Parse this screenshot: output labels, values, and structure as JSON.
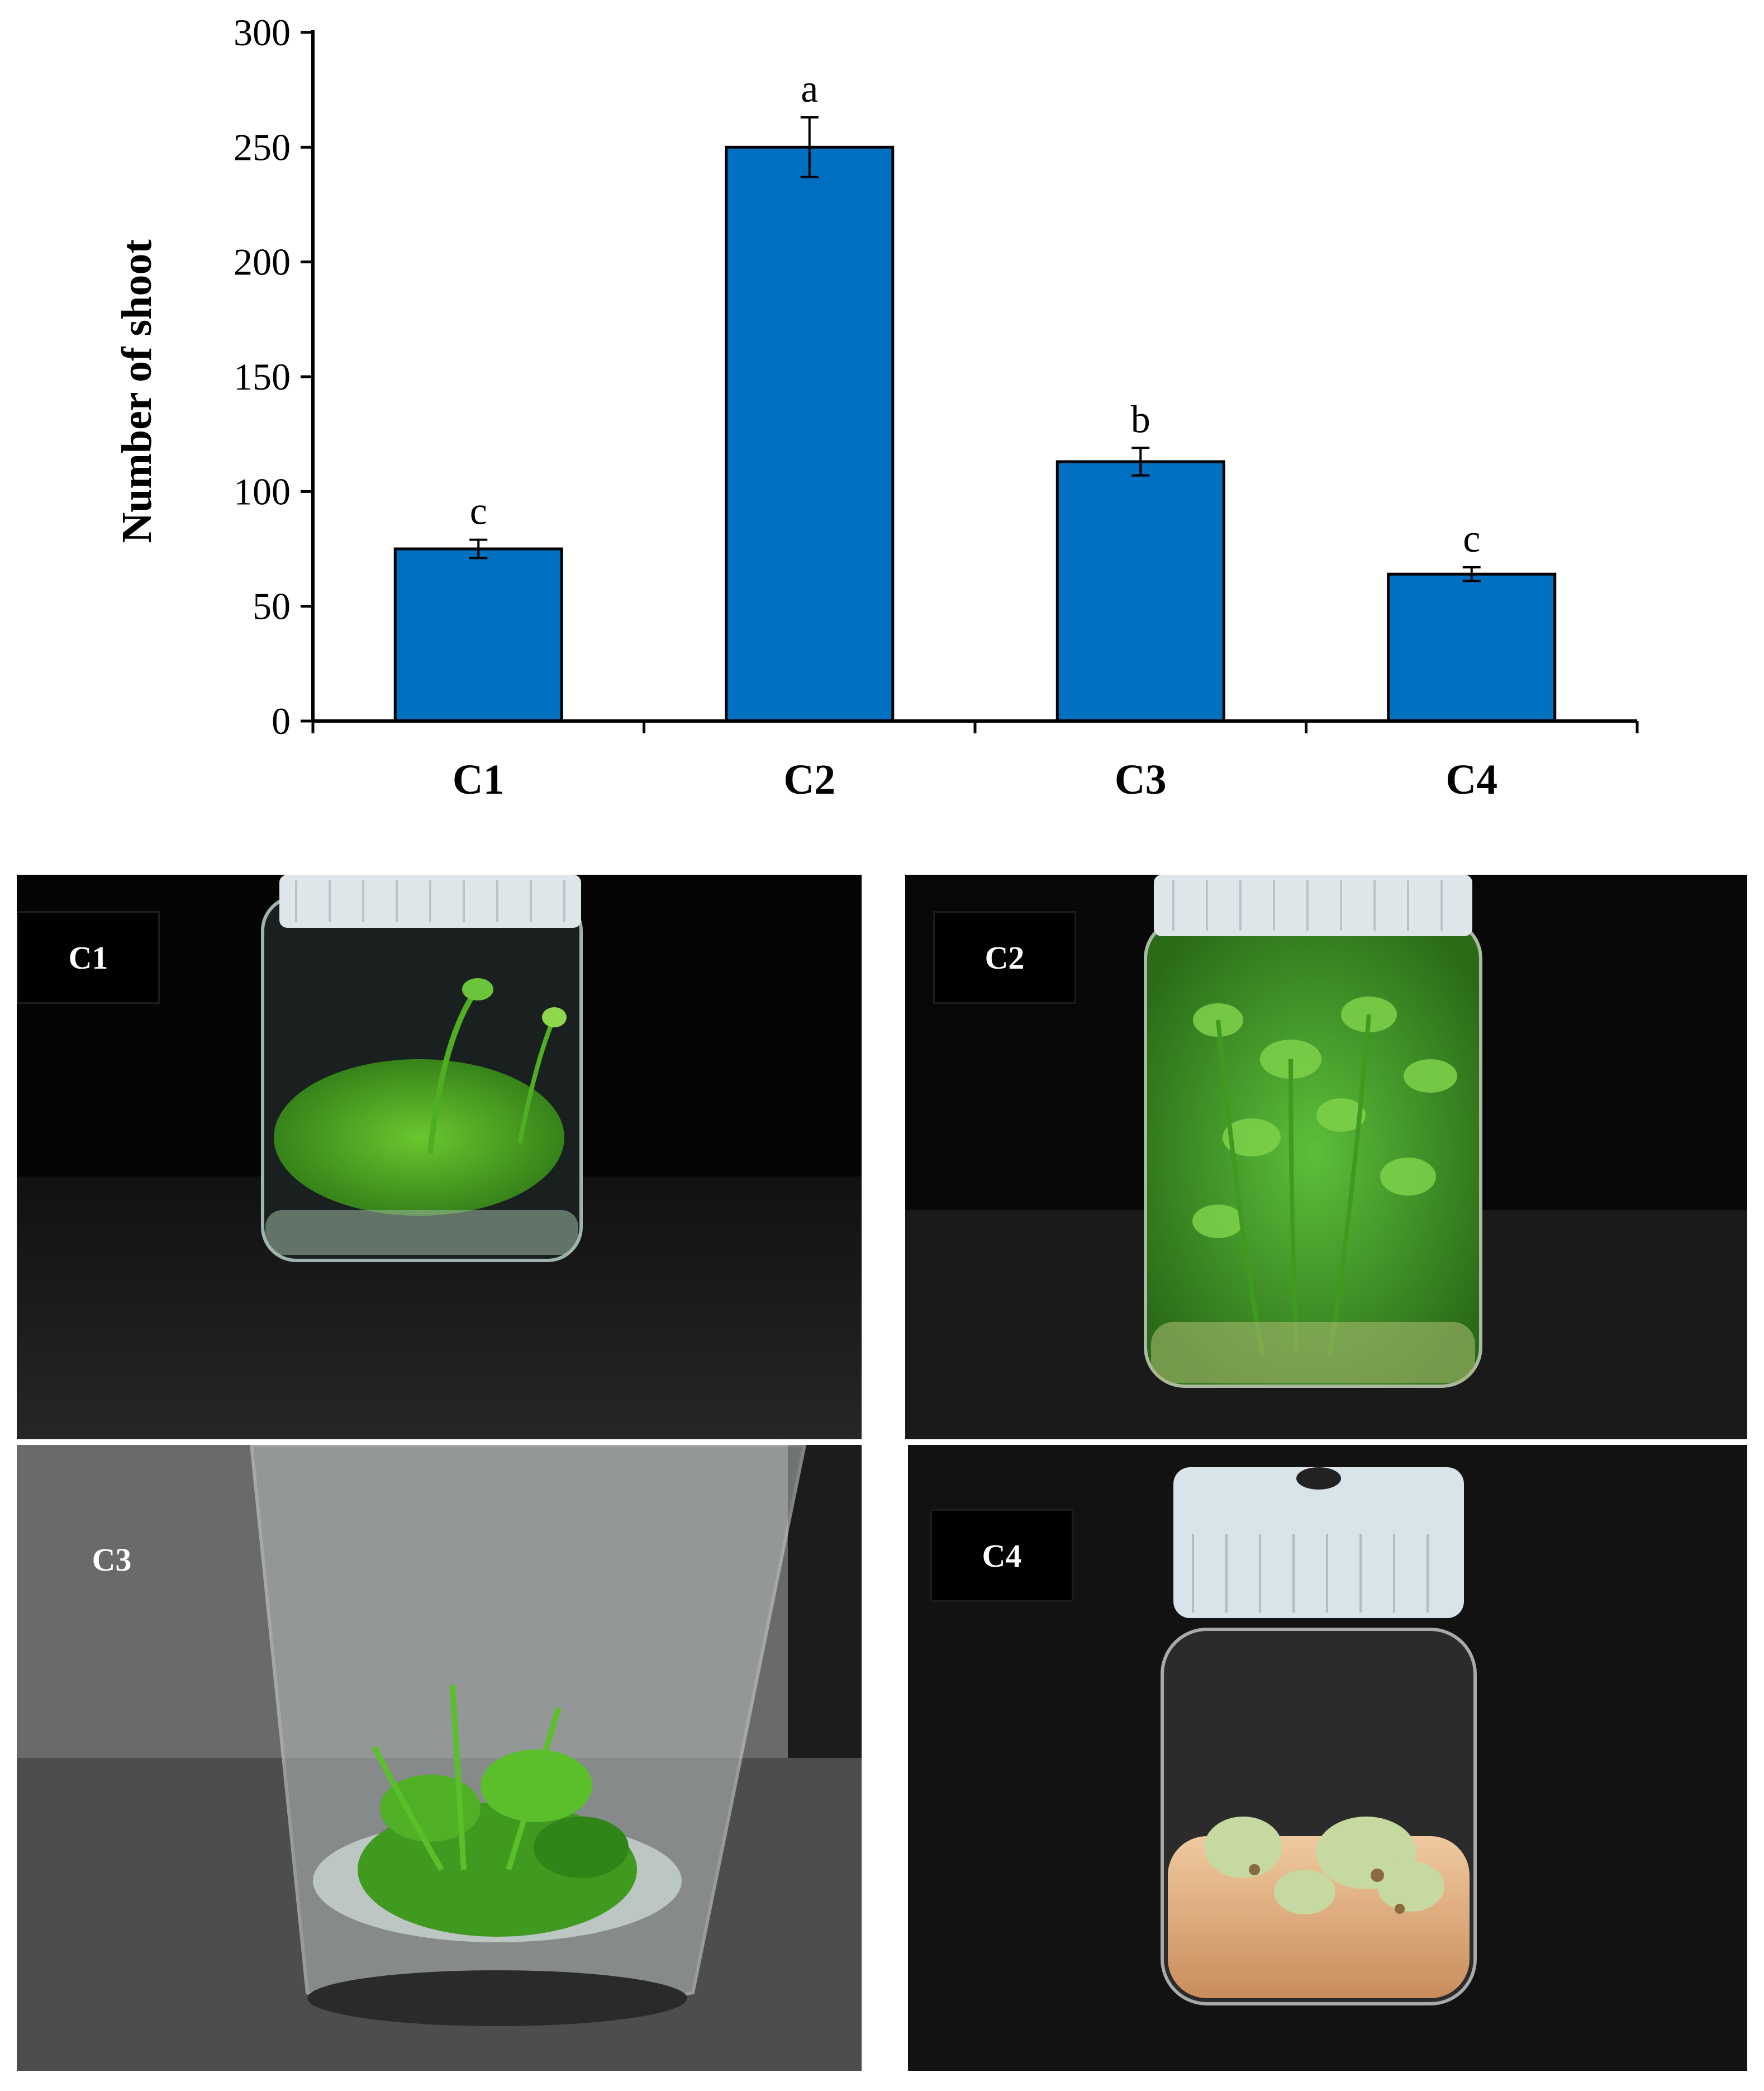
{
  "chart_data": {
    "type": "bar",
    "categories": [
      "C1",
      "C2",
      "C3",
      "C4"
    ],
    "values": [
      75,
      250,
      113,
      64
    ],
    "errors": [
      4,
      13,
      6,
      3
    ],
    "significance": [
      "c",
      "a",
      "b",
      "c"
    ],
    "ylabel": "Number of shoot",
    "xlabel": "",
    "ylim": [
      0,
      300
    ],
    "yticks": [
      0,
      50,
      100,
      150,
      200,
      250,
      300
    ],
    "bar_color": "#0070C0",
    "grid": false
  },
  "photos": {
    "c1": {
      "label": "C1",
      "scene": "jar-green-shoots"
    },
    "c2": {
      "label": "C2",
      "scene": "jar-dense-green-shoots"
    },
    "c3": {
      "label": "C3",
      "scene": "jar-bottom-green-shoots"
    },
    "c4": {
      "label": "C4",
      "scene": "jar-pale-callus"
    }
  }
}
